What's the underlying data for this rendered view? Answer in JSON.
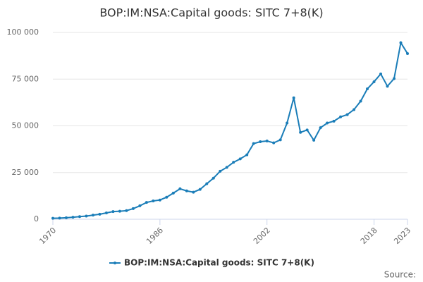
{
  "chart_data": {
    "type": "line",
    "title": "BOP:IM:NSA:Capital goods: SITC 7+8(K)",
    "source": "Source:",
    "x": [
      1970,
      1971,
      1972,
      1973,
      1974,
      1975,
      1976,
      1977,
      1978,
      1979,
      1980,
      1981,
      1982,
      1983,
      1984,
      1985,
      1986,
      1987,
      1988,
      1989,
      1990,
      1991,
      1992,
      1993,
      1994,
      1995,
      1996,
      1997,
      1998,
      1999,
      2000,
      2001,
      2002,
      2003,
      2004,
      2005,
      2006,
      2007,
      2008,
      2009,
      2010,
      2011,
      2012,
      2013,
      2014,
      2015,
      2016,
      2017,
      2018,
      2019,
      2020,
      2021,
      2022,
      2023
    ],
    "series": [
      {
        "name": "BOP:IM:NSA:Capital goods: SITC 7+8(K)",
        "color": "#1a7db8",
        "values": [
          500,
          600,
          800,
          1100,
          1400,
          1700,
          2200,
          2700,
          3400,
          4100,
          4300,
          4600,
          5700,
          7200,
          9000,
          9800,
          10300,
          11800,
          14000,
          16300,
          15200,
          14500,
          16000,
          19000,
          22000,
          25700,
          27800,
          30500,
          32300,
          34500,
          40500,
          41500,
          41900,
          40900,
          42500,
          51500,
          65000,
          46500,
          47800,
          42300,
          49000,
          51500,
          52500,
          54800,
          56000,
          58700,
          63200,
          69800,
          73600,
          77800,
          71200,
          75300,
          94500,
          88700
        ]
      }
    ],
    "xlim": [
      1970,
      2023
    ],
    "xticks": [
      1970,
      1986,
      2002,
      2018,
      2023
    ],
    "ylim": [
      0,
      100000
    ],
    "yticks": [
      0,
      {
        "value": 25000,
        "label": "25 000"
      },
      {
        "value": 50000,
        "label": "50 000"
      },
      {
        "value": 75000,
        "label": "75 000"
      },
      {
        "value": 100000,
        "label": "100 000"
      }
    ],
    "grid": true
  }
}
